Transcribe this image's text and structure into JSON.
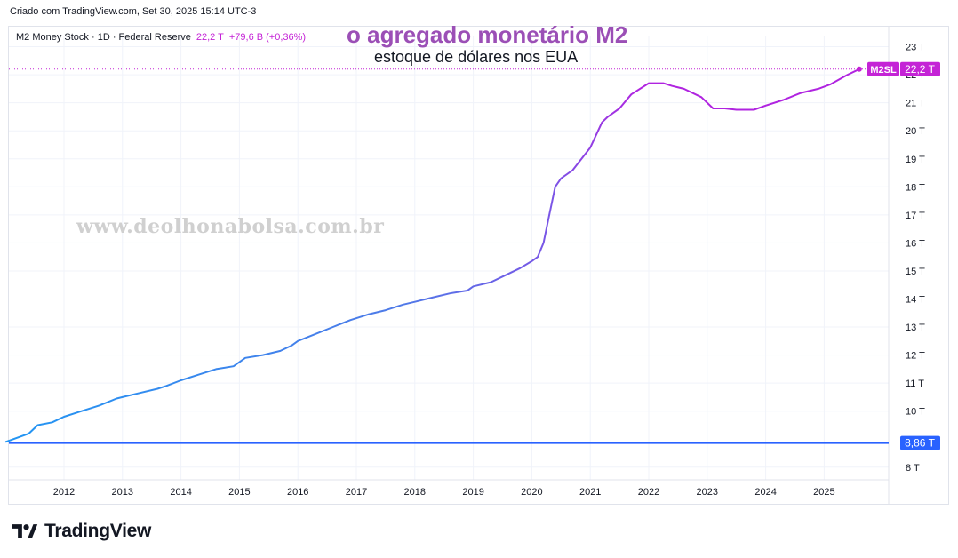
{
  "header": {
    "created_text": "Criado com TradingView.com, Set 30, 2025 15:14 UTC-3"
  },
  "legend": {
    "symbol": "M2 Money Stock · 1D · Federal Reserve",
    "last_value": "22,2 T",
    "change": "+79,6 B (+0,36%)"
  },
  "annotations": {
    "title": "o agregado monetário M2",
    "subtitle": "estoque de dólares nos EUA",
    "watermark": "www.deolhonabolsa.com.br"
  },
  "brand": {
    "name": "TradingView"
  },
  "colors": {
    "accent_purple": "#c423d6",
    "line_blue": "#2196f3",
    "line_purple": "#b024e0",
    "horizontal_line": "#2962ff",
    "title_purple": "#9b4fb6"
  },
  "chart_data": {
    "type": "line",
    "title": "M2 Money Stock · 1D · Federal Reserve",
    "xlabel": "",
    "ylabel": "",
    "x_unit": "year",
    "xlim": [
      2011.0,
      2026.1
    ],
    "ylim": [
      7.8,
      23.3
    ],
    "y_ticks": [
      8,
      10,
      11,
      12,
      13,
      14,
      15,
      16,
      17,
      18,
      19,
      20,
      21,
      22,
      23
    ],
    "y_tick_labels": [
      "8 T",
      "10 T",
      "11 T",
      "12 T",
      "13 T",
      "14 T",
      "15 T",
      "16 T",
      "17 T",
      "18 T",
      "19 T",
      "20 T",
      "21 T",
      "22 T",
      "23 T"
    ],
    "x_ticks": [
      2012,
      2013,
      2014,
      2015,
      2016,
      2017,
      2018,
      2019,
      2020,
      2021,
      2022,
      2023,
      2024,
      2025
    ],
    "x_tick_labels": [
      "2012",
      "2013",
      "2014",
      "2015",
      "2016",
      "2017",
      "2018",
      "2019",
      "2020",
      "2021",
      "2022",
      "2023",
      "2024",
      "2025"
    ],
    "series": [
      {
        "name": "M2SL",
        "x": [
          2011.0,
          2011.2,
          2011.4,
          2011.55,
          2011.8,
          2012.0,
          2012.3,
          2012.6,
          2012.9,
          2013.0,
          2013.3,
          2013.6,
          2013.75,
          2014.0,
          2014.3,
          2014.6,
          2014.9,
          2015.1,
          2015.4,
          2015.7,
          2015.9,
          2016.0,
          2016.3,
          2016.6,
          2016.9,
          2017.2,
          2017.5,
          2017.8,
          2018.0,
          2018.3,
          2018.6,
          2018.9,
          2019.0,
          2019.3,
          2019.5,
          2019.8,
          2020.0,
          2020.1,
          2020.2,
          2020.3,
          2020.4,
          2020.5,
          2020.7,
          2021.0,
          2021.2,
          2021.3,
          2021.5,
          2021.7,
          2022.0,
          2022.25,
          2022.4,
          2022.6,
          2022.9,
          2023.1,
          2023.3,
          2023.5,
          2023.8,
          2024.0,
          2024.3,
          2024.6,
          2024.9,
          2025.1,
          2025.4,
          2025.6
        ],
        "values": [
          8.9,
          9.05,
          9.2,
          9.5,
          9.6,
          9.8,
          10.0,
          10.2,
          10.45,
          10.5,
          10.65,
          10.8,
          10.9,
          11.1,
          11.3,
          11.5,
          11.6,
          11.9,
          12.0,
          12.15,
          12.35,
          12.5,
          12.75,
          13.0,
          13.25,
          13.45,
          13.6,
          13.8,
          13.9,
          14.05,
          14.2,
          14.3,
          14.45,
          14.6,
          14.8,
          15.1,
          15.35,
          15.5,
          16.0,
          17.0,
          18.0,
          18.3,
          18.6,
          19.4,
          20.3,
          20.5,
          20.8,
          21.3,
          21.7,
          21.7,
          21.6,
          21.5,
          21.2,
          20.8,
          20.8,
          20.75,
          20.75,
          20.9,
          21.1,
          21.35,
          21.5,
          21.65,
          22.0,
          22.2
        ]
      },
      {
        "name": "horizontal",
        "values": [
          8.86
        ]
      }
    ],
    "last_label": {
      "symbol": "M2SL",
      "value": "22,2 T"
    },
    "hline_label": "8,86 T"
  }
}
